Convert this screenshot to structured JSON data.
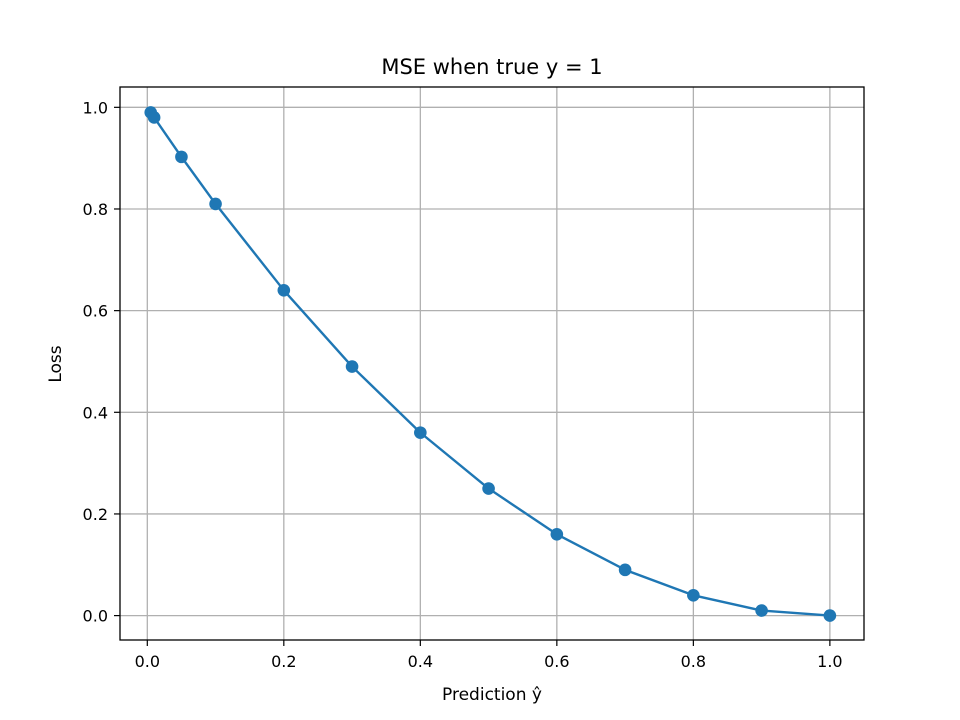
{
  "chart_data": {
    "type": "line",
    "title": "MSE when true y = 1",
    "xlabel": "Prediction ŷ",
    "ylabel": "Loss",
    "xlim": [
      -0.04,
      1.05
    ],
    "ylim": [
      -0.048,
      1.04
    ],
    "grid": true,
    "marker": "circle",
    "xticks": [
      0.0,
      0.2,
      0.4,
      0.6,
      0.8,
      1.0
    ],
    "xtick_labels": [
      "0.0",
      "0.2",
      "0.4",
      "0.6",
      "0.8",
      "1.0"
    ],
    "yticks": [
      0.0,
      0.2,
      0.4,
      0.6,
      0.8,
      1.0
    ],
    "ytick_labels": [
      "0.0",
      "0.2",
      "0.4",
      "0.6",
      "0.8",
      "1.0"
    ],
    "series": [
      {
        "color": "#1f77b4",
        "x": [
          0.005,
          0.01,
          0.05,
          0.1,
          0.2,
          0.3,
          0.4,
          0.5,
          0.6,
          0.7,
          0.8,
          0.9,
          1.0
        ],
        "y": [
          0.990025,
          0.9801,
          0.9025,
          0.81,
          0.64,
          0.49,
          0.36,
          0.25,
          0.16,
          0.09,
          0.04,
          0.01,
          0.0
        ]
      }
    ]
  }
}
